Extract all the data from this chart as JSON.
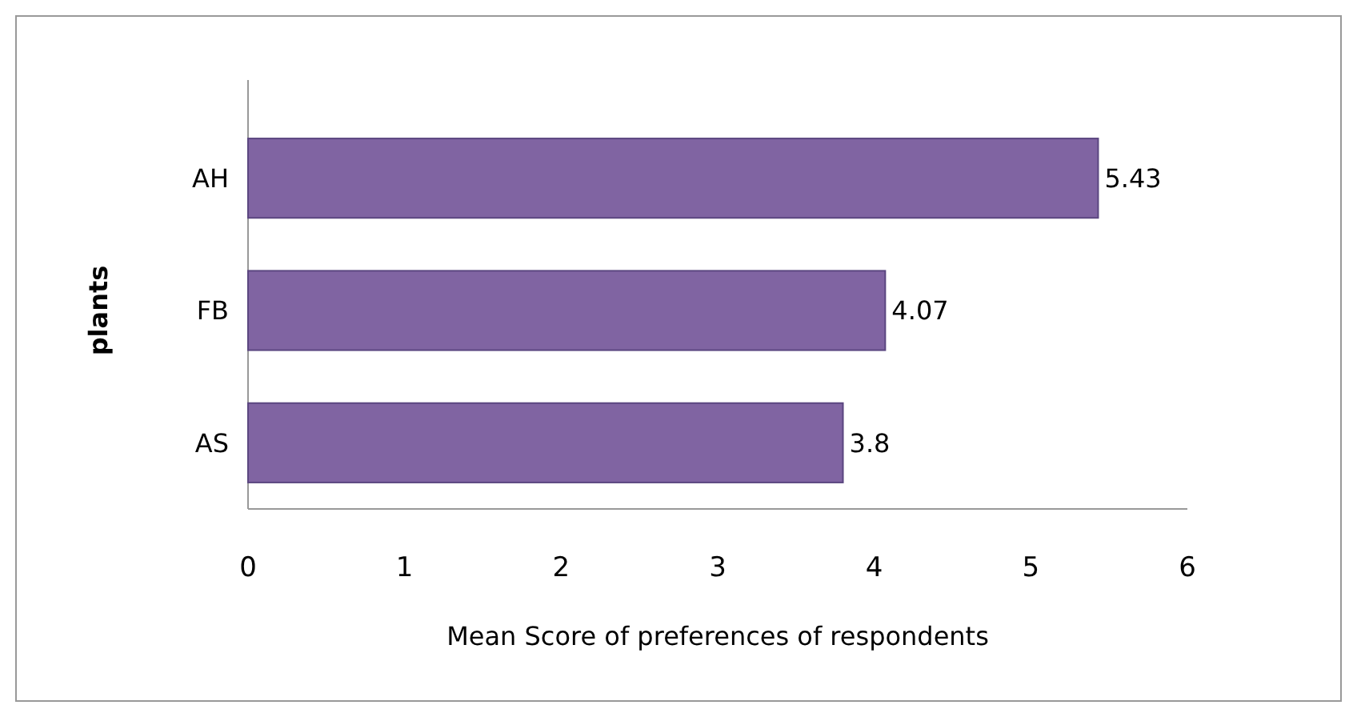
{
  "chart_data": {
    "type": "bar",
    "orientation": "horizontal",
    "categories": [
      "AH",
      "FB",
      "AS"
    ],
    "values": [
      5.43,
      4.07,
      3.8
    ],
    "color": "#8064a2",
    "data_labels": true,
    "xlim": [
      0,
      6
    ],
    "xticks": [
      0,
      1,
      2,
      3,
      4,
      5,
      6
    ],
    "xlabel": "Mean Score of preferences of respondents",
    "ylabel": "plants",
    "grid": false
  }
}
